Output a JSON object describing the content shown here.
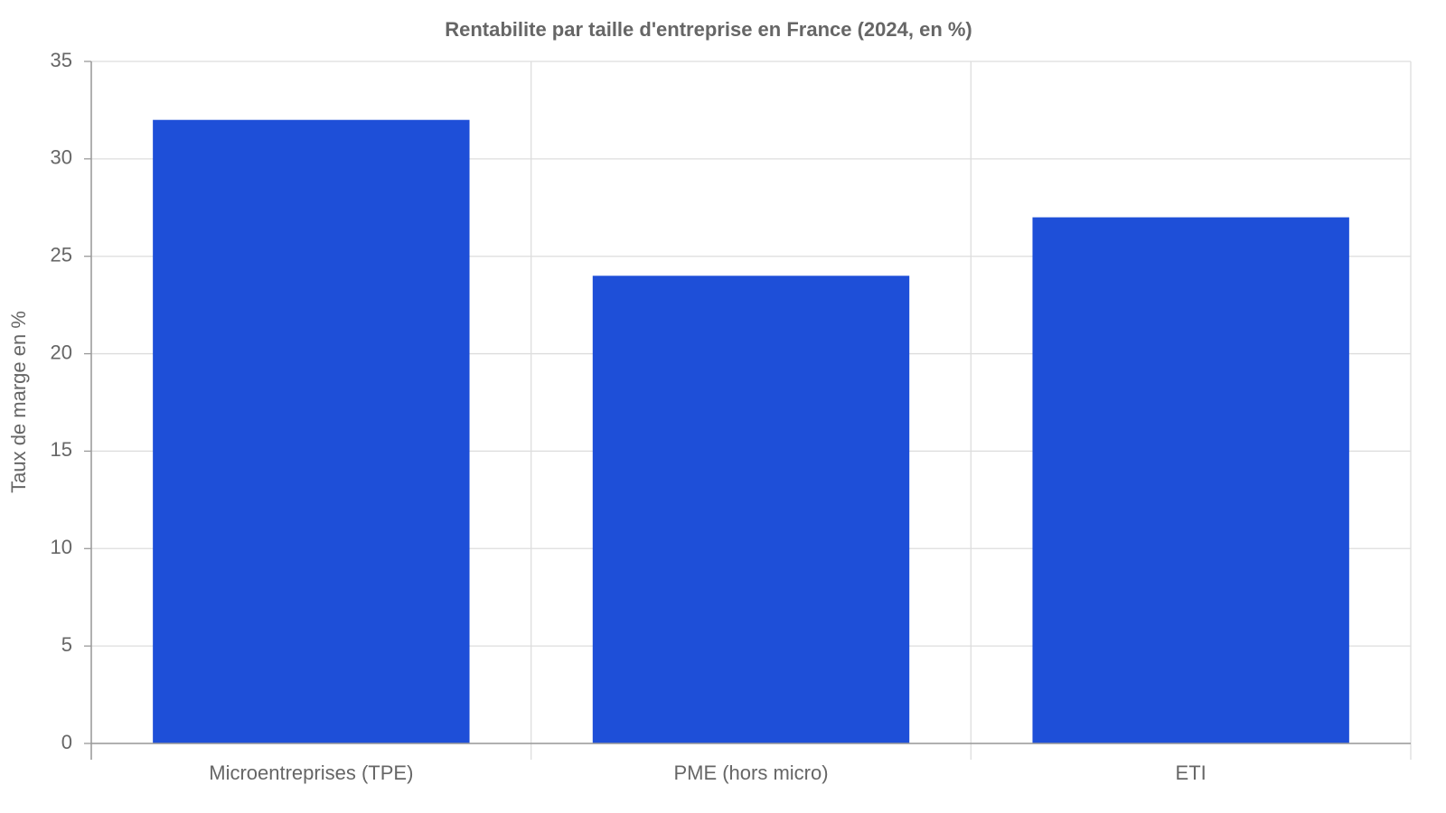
{
  "chart_data": {
    "type": "bar",
    "title": "Rentabilite par taille d'entreprise en France (2024, en %)",
    "y_label": "Taux de marge en %",
    "categories": [
      "Microentreprises (TPE)",
      "PME (hors micro)",
      "ETI"
    ],
    "values": [
      32,
      24,
      27
    ],
    "color": "#1e4fd8",
    "ylim": [
      0,
      35
    ],
    "yticks": [
      0,
      5,
      10,
      15,
      20,
      25,
      30,
      35
    ],
    "grid": true
  }
}
